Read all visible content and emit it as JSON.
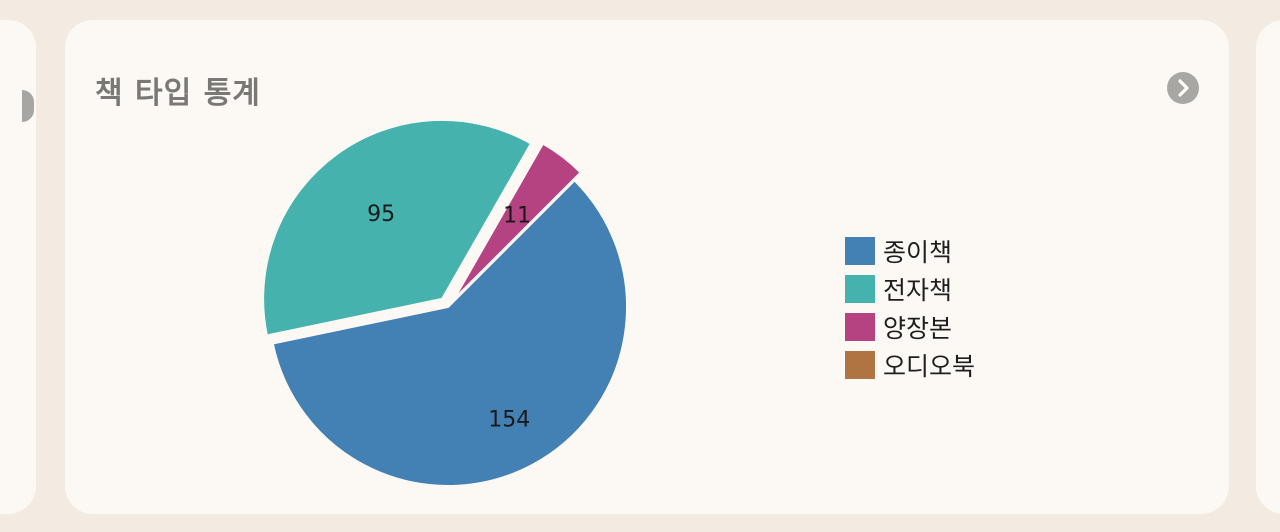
{
  "card": {
    "title": "책 타입 통계",
    "more_icon": "chevron-right-icon"
  },
  "colors": {
    "background": "#f3ebe1",
    "card": "#fcf9f5",
    "title": "#7a7875"
  },
  "chart_data": {
    "type": "pie",
    "title": "책 타입 통계",
    "legend_position": "right",
    "slices": [
      {
        "label": "종이책",
        "value": 154,
        "color": "#4380b3"
      },
      {
        "label": "전자책",
        "value": 95,
        "color": "#45b2ad"
      },
      {
        "label": "양장본",
        "value": 11,
        "color": "#b54382"
      },
      {
        "label": "오디오북",
        "value": 0,
        "color": "#b07443"
      }
    ]
  }
}
